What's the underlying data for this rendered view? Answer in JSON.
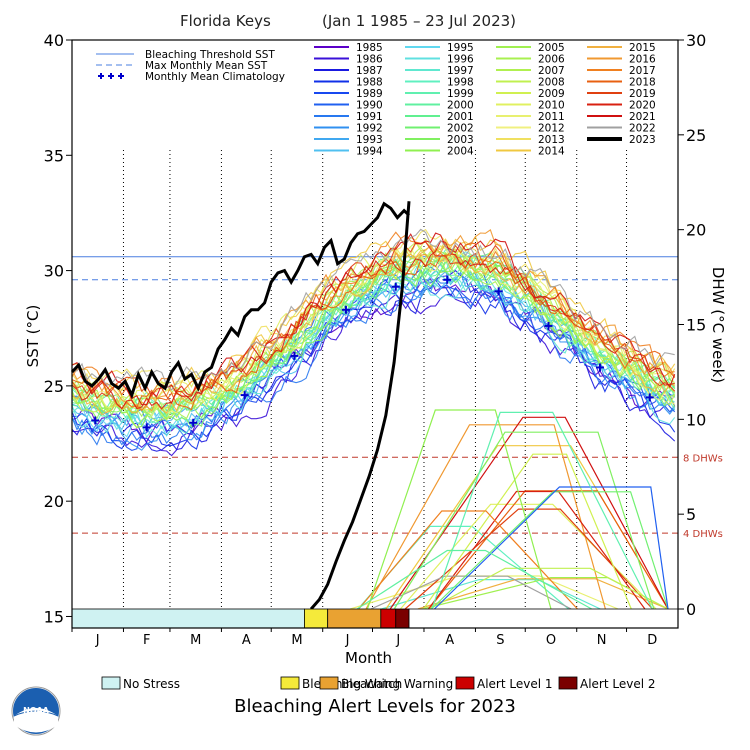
{
  "chart_data": {
    "type": "line",
    "title": "Florida Keys",
    "date_range": "(Jan 1 1985 – 23 Jul 2023)",
    "ylabel_left": "SST (°C)",
    "ylabel_right": "DHW (°C week)",
    "xlabel": "Month",
    "ylim_left": [
      14.5,
      40
    ],
    "ylim_right": [
      0,
      30
    ],
    "y_ticks_left": [
      15,
      20,
      25,
      30,
      35,
      40
    ],
    "y_ticks_right": [
      0,
      5,
      10,
      15,
      20,
      25,
      30
    ],
    "months": [
      "J",
      "F",
      "M",
      "A",
      "M",
      "J",
      "J",
      "A",
      "S",
      "O",
      "N",
      "D"
    ],
    "bleaching_threshold_sst": 30.6,
    "max_monthly_mean_sst": 29.6,
    "dhw_reference_lines": [
      {
        "label": "8 DHWs",
        "value": 8
      },
      {
        "label": "4 DHWs",
        "value": 4
      }
    ],
    "legend_items": [
      {
        "label": "Bleaching Threshold SST",
        "style": "solid",
        "color": "#4a7fe0"
      },
      {
        "label": "Max Monthly Mean SST",
        "style": "dashed",
        "color": "#4a7fe0"
      },
      {
        "label": "Monthly Mean Climatology",
        "style": "plus",
        "color": "#0000cc"
      }
    ],
    "years": [
      {
        "year": "1985",
        "color": "#5b00c8"
      },
      {
        "year": "1986",
        "color": "#3a10d8"
      },
      {
        "year": "1987",
        "color": "#1a1ae0"
      },
      {
        "year": "1988",
        "color": "#1030e8"
      },
      {
        "year": "1989",
        "color": "#1848f0"
      },
      {
        "year": "1990",
        "color": "#2060f0"
      },
      {
        "year": "1991",
        "color": "#2878f0"
      },
      {
        "year": "1992",
        "color": "#3090f0"
      },
      {
        "year": "1993",
        "color": "#40a8f0"
      },
      {
        "year": "1994",
        "color": "#50c0f0"
      },
      {
        "year": "1995",
        "color": "#60d8f0"
      },
      {
        "year": "1996",
        "color": "#60e0e0"
      },
      {
        "year": "1997",
        "color": "#60e8d0"
      },
      {
        "year": "1998",
        "color": "#60f0c0"
      },
      {
        "year": "1999",
        "color": "#60f0b0"
      },
      {
        "year": "2000",
        "color": "#60f0a0"
      },
      {
        "year": "2001",
        "color": "#60f090"
      },
      {
        "year": "2002",
        "color": "#70f070"
      },
      {
        "year": "2003",
        "color": "#80f060"
      },
      {
        "year": "2004",
        "color": "#90f050"
      },
      {
        "year": "2005",
        "color": "#a0f050"
      },
      {
        "year": "2006",
        "color": "#a8f050"
      },
      {
        "year": "2007",
        "color": "#b0f050"
      },
      {
        "year": "2008",
        "color": "#c0f050"
      },
      {
        "year": "2009",
        "color": "#d0f050"
      },
      {
        "year": "2010",
        "color": "#e0f060"
      },
      {
        "year": "2011",
        "color": "#e8f070"
      },
      {
        "year": "2012",
        "color": "#f0f080"
      },
      {
        "year": "2013",
        "color": "#f0e060"
      },
      {
        "year": "2014",
        "color": "#f0c840"
      },
      {
        "year": "2015",
        "color": "#f0b040"
      },
      {
        "year": "2016",
        "color": "#f09830"
      },
      {
        "year": "2017",
        "color": "#f08020"
      },
      {
        "year": "2018",
        "color": "#e86010"
      },
      {
        "year": "2019",
        "color": "#e04010"
      },
      {
        "year": "2020",
        "color": "#d82010"
      },
      {
        "year": "2021",
        "color": "#d01010"
      },
      {
        "year": "2022",
        "color": "#a0a0a0"
      },
      {
        "year": "2023",
        "color": "#000000"
      }
    ],
    "sst_2023": {
      "x_day": [
        1,
        5,
        9,
        13,
        17,
        21,
        25,
        29,
        33,
        37,
        41,
        45,
        49,
        53,
        57,
        61,
        65,
        69,
        73,
        77,
        81,
        85,
        89,
        93,
        97,
        101,
        105,
        109,
        113,
        117,
        121,
        125,
        129,
        133,
        137,
        141,
        145,
        149,
        153,
        157,
        161,
        165,
        169,
        173,
        177,
        181,
        185,
        189,
        193,
        197,
        201,
        204
      ],
      "y": [
        25.6,
        25.9,
        25.2,
        25.0,
        25.3,
        25.7,
        25.1,
        24.9,
        25.2,
        24.6,
        25.5,
        24.9,
        25.6,
        25.1,
        24.9,
        25.6,
        26.0,
        25.3,
        25.5,
        24.9,
        25.6,
        25.8,
        26.6,
        27.0,
        27.5,
        27.2,
        28.0,
        28.3,
        28.3,
        28.6,
        29.5,
        29.9,
        30.0,
        29.5,
        30.0,
        30.6,
        30.7,
        30.3,
        31.0,
        31.3,
        30.3,
        30.5,
        31.2,
        31.6,
        31.7,
        32.0,
        32.3,
        32.9,
        32.7,
        32.3,
        32.6,
        32.4
      ]
    },
    "dhw_2023": {
      "x_day": [
        145,
        150,
        155,
        160,
        165,
        170,
        175,
        180,
        185,
        190,
        195,
        200,
        204
      ],
      "y": [
        0,
        0.5,
        1.3,
        2.5,
        3.6,
        4.6,
        5.8,
        7.0,
        8.4,
        10.2,
        13.0,
        17.0,
        21.5
      ]
    },
    "climatology": {
      "x_day": [
        15,
        46,
        74,
        105,
        135,
        166,
        196,
        227,
        258,
        288,
        319,
        349
      ],
      "y": [
        23.5,
        23.2,
        23.4,
        24.6,
        26.3,
        28.3,
        29.3,
        29.6,
        29.1,
        27.6,
        25.8,
        24.5
      ]
    },
    "alert_bar": [
      {
        "level": "No Stress",
        "start_day": 1,
        "end_day": 141,
        "color": "#cff2f2"
      },
      {
        "level": "Bleaching Watch",
        "start_day": 141,
        "end_day": 155,
        "color": "#f5ea3a"
      },
      {
        "level": "Bleaching Warning",
        "start_day": 155,
        "end_day": 187,
        "color": "#e9a232"
      },
      {
        "level": "Alert Level 1",
        "start_day": 187,
        "end_day": 196,
        "color": "#cc0000"
      },
      {
        "level": "Alert Level 2",
        "start_day": 196,
        "end_day": 204,
        "color": "#7a0000"
      }
    ]
  },
  "footer": {
    "title": "Bleaching Alert Levels for 2023",
    "alert_legend": [
      {
        "label": "No Stress",
        "color": "#cff2f2"
      },
      {
        "label": "Bleaching Watch",
        "color": "#f5ea3a"
      },
      {
        "label": "Bleaching Warning",
        "color": "#e9a232"
      },
      {
        "label": "Alert Level 1",
        "color": "#cc0000"
      },
      {
        "label": "Alert Level 2",
        "color": "#7a0000"
      }
    ],
    "logo_text": "NOAA"
  }
}
